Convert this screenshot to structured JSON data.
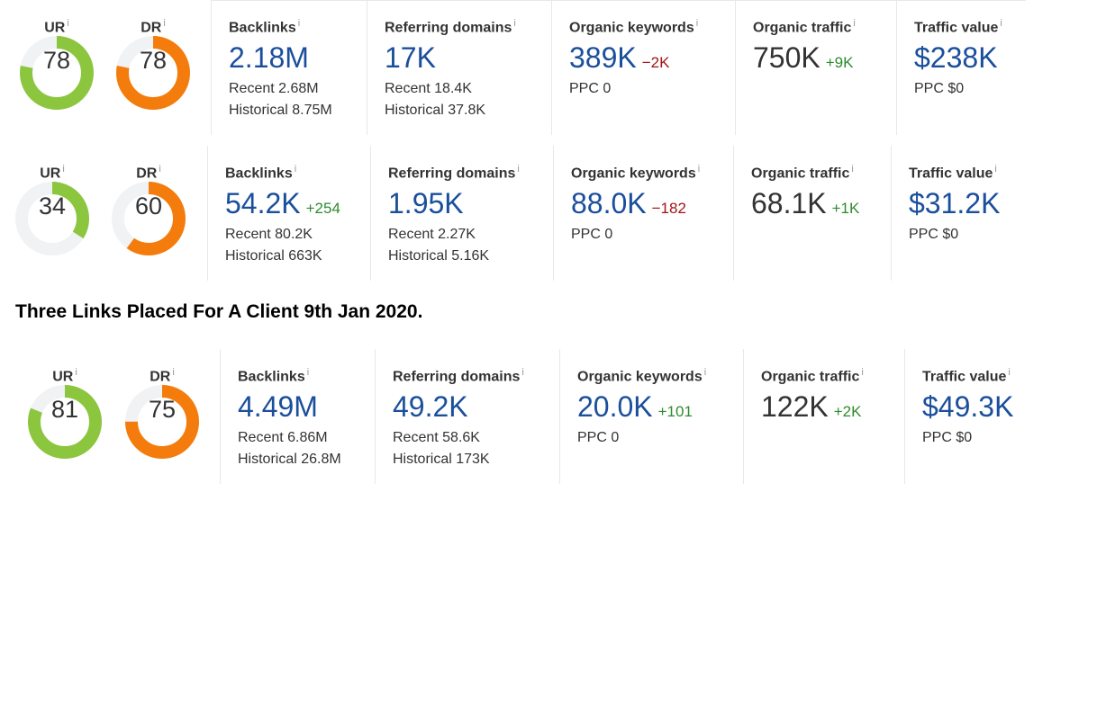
{
  "panels": [
    {
      "ur": {
        "label": "UR",
        "info": "i",
        "value": "78",
        "score": 78
      },
      "dr": {
        "label": "DR",
        "info": "i",
        "value": "78",
        "score": 78
      },
      "backlinks": {
        "label": "Backlinks",
        "info": "i",
        "value": "2.18M",
        "delta": "",
        "recent": "Recent 2.68M",
        "historical": "Historical 8.75M"
      },
      "referring_domains": {
        "label": "Referring domains",
        "info": "i",
        "value": "17K",
        "delta": "",
        "recent": "Recent 18.4K",
        "historical": "Historical 37.8K"
      },
      "organic_keywords": {
        "label": "Organic keywords",
        "info": "i",
        "value": "389K",
        "delta": "−2K",
        "ppc": "PPC 0"
      },
      "organic_traffic": {
        "label": "Organic traffic",
        "info": "i",
        "value": "750K",
        "delta": "+9K"
      },
      "traffic_value": {
        "label": "Traffic value",
        "info": "i",
        "value": "$238K",
        "ppc": "PPC $0"
      }
    },
    {
      "ur": {
        "label": "UR",
        "info": "i",
        "value": "34",
        "score": 34
      },
      "dr": {
        "label": "DR",
        "info": "i",
        "value": "60",
        "score": 60
      },
      "backlinks": {
        "label": "Backlinks",
        "info": "i",
        "value": "54.2K",
        "delta": "+254",
        "recent": "Recent 80.2K",
        "historical": "Historical 663K"
      },
      "referring_domains": {
        "label": "Referring domains",
        "info": "i",
        "value": "1.95K",
        "delta": "",
        "recent": "Recent 2.27K",
        "historical": "Historical 5.16K"
      },
      "organic_keywords": {
        "label": "Organic keywords",
        "info": "i",
        "value": "88.0K",
        "delta": "−182",
        "ppc": "PPC 0"
      },
      "organic_traffic": {
        "label": "Organic traffic",
        "info": "i",
        "value": "68.1K",
        "delta": "+1K"
      },
      "traffic_value": {
        "label": "Traffic value",
        "info": "i",
        "value": "$31.2K",
        "ppc": "PPC $0"
      }
    },
    {
      "ur": {
        "label": "UR",
        "info": "i",
        "value": "81",
        "score": 81
      },
      "dr": {
        "label": "DR",
        "info": "i",
        "value": "75",
        "score": 75
      },
      "backlinks": {
        "label": "Backlinks",
        "info": "i",
        "value": "4.49M",
        "delta": "",
        "recent": "Recent 6.86M",
        "historical": "Historical 26.8M"
      },
      "referring_domains": {
        "label": "Referring domains",
        "info": "i",
        "value": "49.2K",
        "delta": "",
        "recent": "Recent 58.6K",
        "historical": "Historical 173K"
      },
      "organic_keywords": {
        "label": "Organic keywords",
        "info": "i",
        "value": "20.0K",
        "delta": "+101",
        "ppc": "PPC 0"
      },
      "organic_traffic": {
        "label": "Organic traffic",
        "info": "i",
        "value": "122K",
        "delta": "+2K"
      },
      "traffic_value": {
        "label": "Traffic value",
        "info": "i",
        "value": "$49.3K",
        "ppc": "PPC $0"
      }
    }
  ],
  "heading": "Three Links Placed For A Client 9th Jan 2020.",
  "colors": {
    "ur": "#8cc63f",
    "dr": "#f47c0c",
    "track": "#f0f2f4",
    "value_blue": "#1a4f9c",
    "delta_pos": "#2e8b2e",
    "delta_neg": "#a31414"
  },
  "icons": {
    "info": "info-icon"
  }
}
